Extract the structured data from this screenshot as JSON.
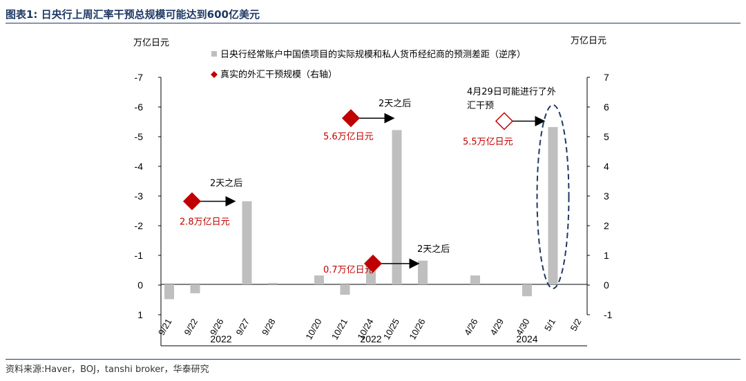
{
  "header": {
    "title": "图表1:  日央行上周汇率干预总规模可能达到600亿美元"
  },
  "footer": {
    "source": "资料来源:Haver，BOJ，tanshi broker，华泰研究"
  },
  "chart_data": {
    "type": "bar",
    "left_axis_label": "万亿日元",
    "right_axis_label": "万亿日元",
    "left_axis": {
      "min": -7,
      "max": 1,
      "inverted": true,
      "tick_labels": [
        "-7",
        "-6",
        "-5",
        "-4",
        "-3",
        "-2",
        "-1",
        "0",
        "1"
      ]
    },
    "right_axis": {
      "min": -1,
      "max": 7,
      "tick_labels": [
        "7",
        "6",
        "5",
        "4",
        "3",
        "2",
        "1",
        "0",
        "-1"
      ]
    },
    "legend": [
      {
        "name": "日央行经常账户中国债项目的实际规模和私人货币经纪商的预测差距（逆序）",
        "color": "#bfbfbf",
        "marker": "square"
      },
      {
        "name": "真实的外汇干预规模（右轴）",
        "color": "#c00000",
        "marker": "diamond"
      }
    ],
    "groups": [
      {
        "year": "2022",
        "categories": [
          "9/21",
          "9/22",
          "9/26",
          "9/27",
          "9/28"
        ],
        "values": [
          0.5,
          0.3,
          0,
          -2.8,
          -0.05
        ]
      },
      {
        "year": "2022",
        "categories": [
          "10/20",
          "10/21",
          "10/24",
          "10/25",
          "10/26"
        ],
        "values": [
          -0.3,
          0.35,
          -0.7,
          -5.2,
          -0.8
        ]
      },
      {
        "year": "2024",
        "categories": [
          "4/26",
          "4/29",
          "4/30",
          "5/1",
          "5/2"
        ],
        "values": [
          -0.3,
          0,
          0.4,
          -5.3,
          0
        ]
      }
    ],
    "interventions": [
      {
        "category": "9/22",
        "value": 2.8,
        "label": "2.8万亿日元",
        "arrow_text": "2天之后",
        "filled": true
      },
      {
        "category": "10/21",
        "value": 5.6,
        "label": "5.6万亿日元",
        "arrow_text": "2天之后",
        "filled": true
      },
      {
        "category": "10/24",
        "value": 0.7,
        "label": "0.7万亿日元",
        "arrow_text": "2天之后",
        "filled": true
      },
      {
        "category": "4/29",
        "value": 5.5,
        "label": "5.5万亿日元",
        "arrow_text": "",
        "filled": false
      }
    ],
    "callout": {
      "text_line1": "4月29日可能进行了外",
      "text_line2": "汇干预",
      "target_category": "5/1"
    }
  }
}
